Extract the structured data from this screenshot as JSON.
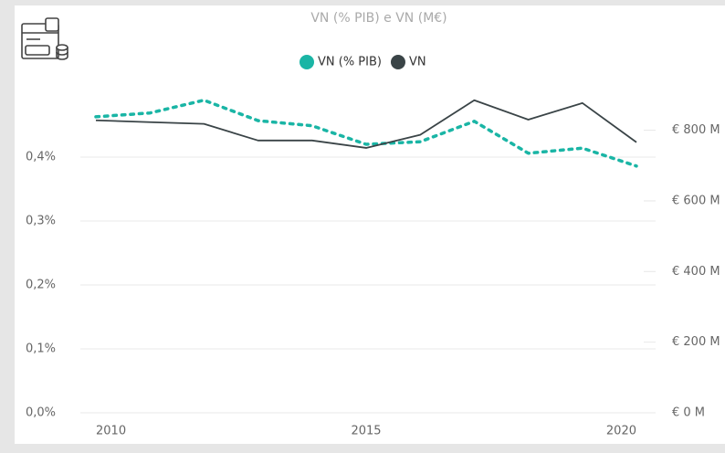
{
  "chart_data": {
    "type": "line",
    "title": "VN (% PIB) e VN (M€)",
    "x": [
      2010,
      2011,
      2012,
      2013,
      2014,
      2015,
      2016,
      2017,
      2018,
      2019,
      2020
    ],
    "xlim": [
      2010,
      2020
    ],
    "xticks": [
      2010,
      2015,
      2020
    ],
    "ylim": [
      0,
      0.5
    ],
    "yticks": [
      {
        "value": 0,
        "label": "0,0%"
      },
      {
        "value": 0.1,
        "label": "0,1%"
      },
      {
        "value": 0.2,
        "label": "0,2%"
      },
      {
        "value": 0.3,
        "label": "0,3%"
      },
      {
        "value": 0.4,
        "label": "0,4%"
      }
    ],
    "y2lim": [
      0,
      905
    ],
    "y2ticks": [
      {
        "value": 0,
        "label": "€ 0 M"
      },
      {
        "value": 200,
        "label": "€ 200 M"
      },
      {
        "value": 400,
        "label": "€ 400 M"
      },
      {
        "value": 600,
        "label": "€ 600 M"
      },
      {
        "value": 800,
        "label": "€ 800 M"
      }
    ],
    "grid": true,
    "series": [
      {
        "name": "VN (% PIB)",
        "color": "#1ab5a5",
        "dashed": true,
        "values": [
          0.463,
          0.469,
          0.489,
          0.457,
          0.449,
          0.42,
          0.424,
          0.456,
          0.406,
          0.414,
          0.386
        ]
      },
      {
        "name": "VN",
        "color": "#3a4447",
        "axis": "y2",
        "values": [
          828,
          823,
          818,
          771,
          771,
          750,
          787,
          885,
          830,
          877,
          766
        ]
      }
    ]
  }
}
